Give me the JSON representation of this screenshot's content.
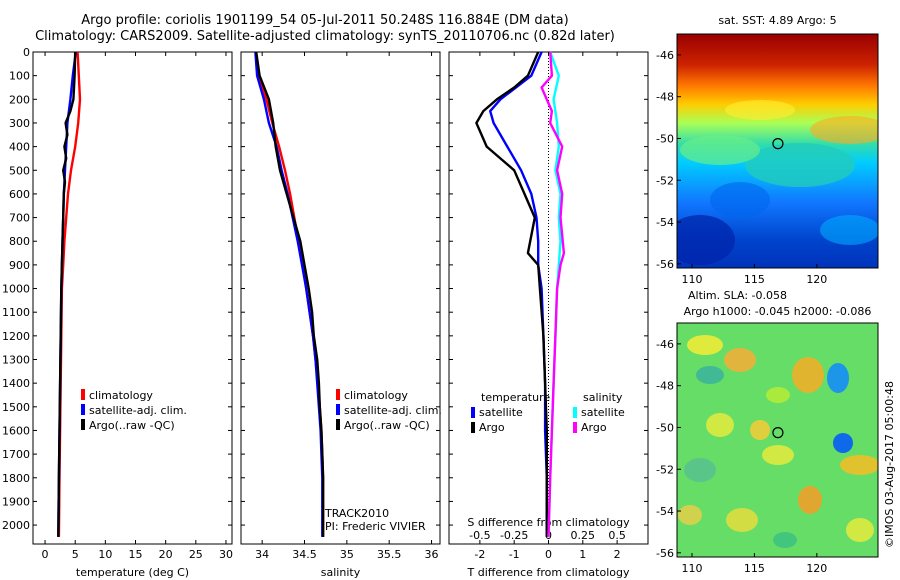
{
  "title_line1": "Argo profile: coriolis 1901199_54 05-Jul-2011 50.248S 116.884E (DM data)",
  "title_line2": "Climatology: CARS2009. Satellite-adjusted climatology: synTS_20110706.nc (0.82d later)",
  "colors": {
    "climatology": "#ff0000",
    "satellite": "#0000ff",
    "argo": "#000000",
    "satellite_salinity": "#00ffff",
    "argo_salinity": "#ff00ff"
  },
  "chart_data": [
    {
      "type": "line",
      "xlabel": "temperature (deg C)",
      "xlim": [
        -2,
        31
      ],
      "ylim": [
        2080,
        0
      ],
      "xticks": [
        0,
        5,
        10,
        15,
        20,
        25,
        30
      ],
      "yticks": [
        0,
        100,
        200,
        300,
        400,
        500,
        600,
        700,
        800,
        900,
        1000,
        1100,
        1200,
        1300,
        1400,
        1500,
        1600,
        1700,
        1800,
        1900,
        2000
      ],
      "legend": [
        "climatology",
        "satellite-adj. clim.",
        "Argo(..raw -QC)"
      ],
      "series": [
        {
          "name": "climatology",
          "color": "#ff0000",
          "points": [
            [
              5.4,
              0
            ],
            [
              5.6,
              100
            ],
            [
              5.8,
              200
            ],
            [
              5.5,
              300
            ],
            [
              5.0,
              400
            ],
            [
              4.3,
              500
            ],
            [
              3.8,
              600
            ],
            [
              3.5,
              700
            ],
            [
              3.2,
              800
            ],
            [
              3.0,
              900
            ],
            [
              2.8,
              1000
            ],
            [
              2.7,
              1200
            ],
            [
              2.6,
              1400
            ],
            [
              2.5,
              1600
            ],
            [
              2.4,
              1800
            ],
            [
              2.3,
              2050
            ]
          ]
        },
        {
          "name": "satellite-adj. clim.",
          "color": "#0000ff",
          "points": [
            [
              5.1,
              0
            ],
            [
              4.6,
              100
            ],
            [
              4.2,
              200
            ],
            [
              3.7,
              300
            ],
            [
              3.5,
              400
            ],
            [
              3.3,
              500
            ],
            [
              3.1,
              600
            ],
            [
              3.0,
              700
            ],
            [
              2.9,
              800
            ],
            [
              2.8,
              900
            ],
            [
              2.7,
              1000
            ],
            [
              2.6,
              1200
            ],
            [
              2.5,
              1400
            ],
            [
              2.4,
              1600
            ],
            [
              2.3,
              1800
            ],
            [
              2.2,
              2050
            ]
          ]
        },
        {
          "name": "Argo(..raw -QC)",
          "color": "#000000",
          "points": [
            [
              5.0,
              0
            ],
            [
              4.9,
              100
            ],
            [
              4.7,
              200
            ],
            [
              4.2,
              250
            ],
            [
              3.4,
              300
            ],
            [
              3.7,
              350
            ],
            [
              3.2,
              400
            ],
            [
              3.5,
              450
            ],
            [
              3.0,
              500
            ],
            [
              3.3,
              550
            ],
            [
              3.1,
              600
            ],
            [
              3.0,
              700
            ],
            [
              2.9,
              800
            ],
            [
              2.8,
              900
            ],
            [
              2.7,
              1000
            ],
            [
              2.6,
              1200
            ],
            [
              2.5,
              1400
            ],
            [
              2.4,
              1600
            ],
            [
              2.3,
              1800
            ],
            [
              2.2,
              2050
            ]
          ]
        }
      ]
    },
    {
      "type": "line",
      "xlabel": "salinity",
      "xlim": [
        33.75,
        36.1
      ],
      "ylim": [
        2080,
        0
      ],
      "xticks": [
        34,
        34.5,
        35,
        35.5,
        36
      ],
      "legend": [
        "climatology",
        "satellite-adj. clim.",
        "Argo(..raw -QC)"
      ],
      "annotation": [
        "TRACK2010",
        "PI: Frederic VIVIER"
      ],
      "series": [
        {
          "name": "climatology",
          "color": "#ff0000",
          "points": [
            [
              33.93,
              0
            ],
            [
              33.95,
              100
            ],
            [
              34.05,
              200
            ],
            [
              34.12,
              300
            ],
            [
              34.2,
              400
            ],
            [
              34.27,
              500
            ],
            [
              34.33,
              600
            ],
            [
              34.38,
              700
            ],
            [
              34.43,
              800
            ],
            [
              34.48,
              900
            ],
            [
              34.52,
              1000
            ],
            [
              34.56,
              1100
            ],
            [
              34.6,
              1200
            ],
            [
              34.63,
              1300
            ],
            [
              34.66,
              1400
            ],
            [
              34.68,
              1500
            ],
            [
              34.7,
              1600
            ],
            [
              34.71,
              1700
            ],
            [
              34.72,
              1800
            ],
            [
              34.72,
              2050
            ]
          ]
        },
        {
          "name": "satellite-adj. clim.",
          "color": "#0000ff",
          "points": [
            [
              33.92,
              0
            ],
            [
              33.94,
              100
            ],
            [
              34.02,
              200
            ],
            [
              34.08,
              300
            ],
            [
              34.17,
              400
            ],
            [
              34.23,
              500
            ],
            [
              34.3,
              600
            ],
            [
              34.36,
              700
            ],
            [
              34.42,
              800
            ],
            [
              34.47,
              900
            ],
            [
              34.52,
              1000
            ],
            [
              34.56,
              1100
            ],
            [
              34.6,
              1200
            ],
            [
              34.63,
              1300
            ],
            [
              34.65,
              1400
            ],
            [
              34.67,
              1500
            ],
            [
              34.69,
              1600
            ],
            [
              34.7,
              1700
            ],
            [
              34.71,
              1800
            ],
            [
              34.71,
              2050
            ]
          ]
        },
        {
          "name": "Argo(..raw -QC)",
          "color": "#000000",
          "points": [
            [
              33.93,
              0
            ],
            [
              33.97,
              100
            ],
            [
              34.08,
              200
            ],
            [
              34.13,
              300
            ],
            [
              34.16,
              400
            ],
            [
              34.21,
              500
            ],
            [
              34.29,
              600
            ],
            [
              34.37,
              700
            ],
            [
              34.45,
              800
            ],
            [
              34.5,
              900
            ],
            [
              34.55,
              1000
            ],
            [
              34.59,
              1100
            ],
            [
              34.61,
              1200
            ],
            [
              34.65,
              1300
            ],
            [
              34.67,
              1400
            ],
            [
              34.68,
              1500
            ],
            [
              34.7,
              1600
            ],
            [
              34.71,
              1700
            ],
            [
              34.72,
              1800
            ],
            [
              34.72,
              2050
            ]
          ]
        }
      ]
    },
    {
      "type": "line",
      "xlabel": "T difference from climatology",
      "x2label": "S difference from climatology",
      "xlim": [
        -2.9,
        2.9
      ],
      "ylim": [
        2080,
        0
      ],
      "xticks": [
        -2,
        -1,
        0,
        1,
        2
      ],
      "x2ticks": [
        "-0.5",
        "-0.25",
        "0",
        "0.25",
        "0.5"
      ],
      "x2tick_positions": [
        -2,
        -1,
        0,
        1,
        2
      ],
      "legend": [
        "temperature",
        "satellite",
        "Argo",
        "salinity",
        "satellite",
        "Argo"
      ],
      "series": [
        {
          "name": "satellite",
          "group": "temperature",
          "color": "#0000ff",
          "points": [
            [
              -0.2,
              0
            ],
            [
              -0.5,
              100
            ],
            [
              -1.4,
              200
            ],
            [
              -1.7,
              250
            ],
            [
              -1.6,
              300
            ],
            [
              -1.2,
              400
            ],
            [
              -0.8,
              500
            ],
            [
              -0.5,
              600
            ],
            [
              -0.35,
              700
            ],
            [
              -0.3,
              800
            ],
            [
              -0.3,
              900
            ],
            [
              -0.2,
              1000
            ],
            [
              -0.15,
              1200
            ],
            [
              -0.1,
              1400
            ],
            [
              -0.1,
              1600
            ],
            [
              -0.05,
              1800
            ],
            [
              -0.05,
              2050
            ]
          ]
        },
        {
          "name": "Argo",
          "group": "temperature",
          "color": "#000000",
          "points": [
            [
              -0.3,
              0
            ],
            [
              -0.6,
              100
            ],
            [
              -1.0,
              150
            ],
            [
              -1.5,
              200
            ],
            [
              -1.9,
              250
            ],
            [
              -2.1,
              300
            ],
            [
              -1.8,
              400
            ],
            [
              -1.0,
              500
            ],
            [
              -0.7,
              600
            ],
            [
              -0.4,
              700
            ],
            [
              -0.6,
              850
            ],
            [
              -0.3,
              900
            ],
            [
              -0.25,
              1000
            ],
            [
              -0.15,
              1200
            ],
            [
              -0.1,
              1400
            ],
            [
              -0.05,
              1600
            ],
            [
              -0.05,
              1800
            ],
            [
              -0.05,
              2050
            ]
          ]
        },
        {
          "name": "satellite",
          "group": "salinity",
          "color": "#00ffff",
          "points": [
            [
              0.05,
              0
            ],
            [
              0.3,
              100
            ],
            [
              0.15,
              200
            ],
            [
              0.25,
              300
            ],
            [
              0.3,
              400
            ],
            [
              0.2,
              500
            ],
            [
              0.35,
              600
            ],
            [
              0.3,
              700
            ],
            [
              0.35,
              800
            ],
            [
              0.3,
              900
            ],
            [
              0.25,
              1000
            ],
            [
              0.2,
              1200
            ],
            [
              0.15,
              1400
            ],
            [
              0.1,
              1600
            ],
            [
              0.05,
              1800
            ],
            [
              0.0,
              2050
            ]
          ]
        },
        {
          "name": "Argo",
          "group": "salinity",
          "color": "#ff00ff",
          "points": [
            [
              0.05,
              0
            ],
            [
              0.1,
              100
            ],
            [
              -0.2,
              150
            ],
            [
              0.1,
              250
            ],
            [
              0.05,
              300
            ],
            [
              0.4,
              400
            ],
            [
              0.25,
              500
            ],
            [
              0.4,
              600
            ],
            [
              0.35,
              700
            ],
            [
              0.45,
              850
            ],
            [
              0.35,
              900
            ],
            [
              0.25,
              1000
            ],
            [
              0.2,
              1200
            ],
            [
              0.15,
              1400
            ],
            [
              0.1,
              1600
            ],
            [
              0.05,
              1800
            ],
            [
              0.0,
              2050
            ]
          ]
        }
      ]
    },
    {
      "type": "heatmap",
      "title": "sat. SST: 4.89 Argo: 5",
      "xlim": [
        108.8,
        124.9
      ],
      "ylim": [
        -56.2,
        -45
      ],
      "xticks": [
        110,
        115,
        120
      ],
      "yticks": [
        -46,
        -48,
        -50,
        -52,
        -54,
        -56
      ],
      "marker": [
        116.884,
        -50.248
      ],
      "colormap": "jet"
    },
    {
      "type": "heatmap",
      "title_line1": "Altim. SLA: -0.058",
      "title_line2": "Argo h1000: -0.045 h2000: -0.086",
      "xlim": [
        108.8,
        124.9
      ],
      "ylim": [
        -56.2,
        -45
      ],
      "xticks": [
        110,
        115,
        120
      ],
      "yticks": [
        -46,
        -48,
        -50,
        -52,
        -54,
        -56
      ],
      "marker": [
        116.884,
        -50.248
      ],
      "colormap": "jet"
    }
  ],
  "footer": "©IMOS 03-Aug-2017 05:00:48"
}
